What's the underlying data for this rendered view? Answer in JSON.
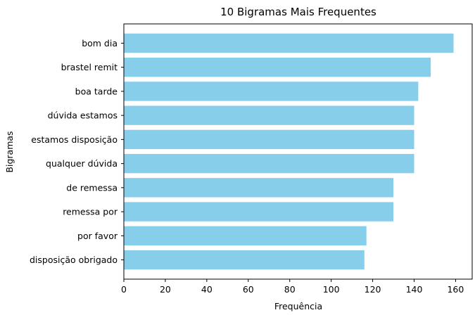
{
  "chart_data": {
    "type": "bar",
    "orientation": "horizontal",
    "title": "10 Bigramas Mais Frequentes",
    "xlabel": "Frequência",
    "ylabel": "Bigramas",
    "categories": [
      "bom dia",
      "brastel remit",
      "boa tarde",
      "dúvida estamos",
      "estamos disposição",
      "qualquer dúvida",
      "de remessa",
      "remessa por",
      "por favor",
      "disposição obrigado"
    ],
    "values": [
      159,
      148,
      142,
      140,
      140,
      140,
      130,
      130,
      117,
      116
    ],
    "xlim": [
      0,
      168
    ],
    "xticks": [
      "0",
      "20",
      "40",
      "60",
      "80",
      "100",
      "120",
      "140",
      "160"
    ],
    "bar_color": "#87ceeb",
    "grid": false,
    "legend": "none"
  }
}
